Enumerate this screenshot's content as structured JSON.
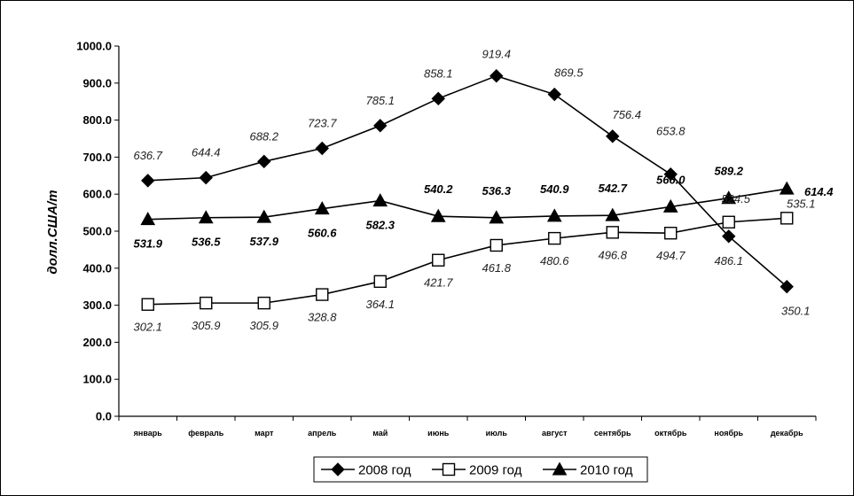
{
  "chart_data": {
    "type": "line",
    "ylabel": "долл.США/т",
    "ylim": [
      0,
      1000
    ],
    "ytick_step": 100,
    "ytick_labels": [
      "0.0",
      "100.0",
      "200.0",
      "300.0",
      "400.0",
      "500.0",
      "600.0",
      "700.0",
      "800.0",
      "900.0",
      "1000.0"
    ],
    "categories": [
      "январь",
      "февраль",
      "март",
      "апрель",
      "май",
      "июнь",
      "июль",
      "август",
      "сентябрь",
      "октябрь",
      "ноябрь",
      "декабрь"
    ],
    "grid": false,
    "legend_position": "bottom",
    "series": [
      {
        "name": "2008 год",
        "marker": "diamond",
        "label_style": "italic",
        "values": [
          636.7,
          644.4,
          688.2,
          723.7,
          785.1,
          858.1,
          919.4,
          869.5,
          756.4,
          653.8,
          486.1,
          350.1
        ],
        "labels": [
          "636.7",
          "644.4",
          "688.2",
          "723.7",
          "785.1",
          "858.1",
          "919.4",
          "869.5",
          "756.4",
          "653.8",
          "486.1",
          "350.1"
        ]
      },
      {
        "name": "2009 год",
        "marker": "square-open",
        "label_style": "italic",
        "values": [
          302.1,
          305.9,
          305.9,
          328.8,
          364.1,
          421.7,
          461.8,
          480.6,
          496.8,
          494.7,
          524.5,
          535.1
        ],
        "labels": [
          "302.1",
          "305.9",
          "305.9",
          "328.8",
          "364.1",
          "421.7",
          "461.8",
          "480.6",
          "496.8",
          "494.7",
          "524.5",
          "535.1"
        ]
      },
      {
        "name": "2010 год",
        "marker": "triangle",
        "label_style": "bold-italic",
        "values": [
          531.9,
          536.5,
          537.9,
          560.6,
          582.3,
          540.2,
          536.3,
          540.9,
          542.7,
          566.0,
          589.2,
          614.4
        ],
        "labels": [
          "531.9",
          "536.5",
          "537.9",
          "560.6",
          "582.3",
          "540.2",
          "536.3",
          "540.9",
          "542.7",
          "566.0",
          "589.2",
          "614.4"
        ]
      }
    ],
    "colors": {
      "line": "#000000",
      "marker_fill": "#000000",
      "open_marker_fill": "#ffffff"
    }
  }
}
